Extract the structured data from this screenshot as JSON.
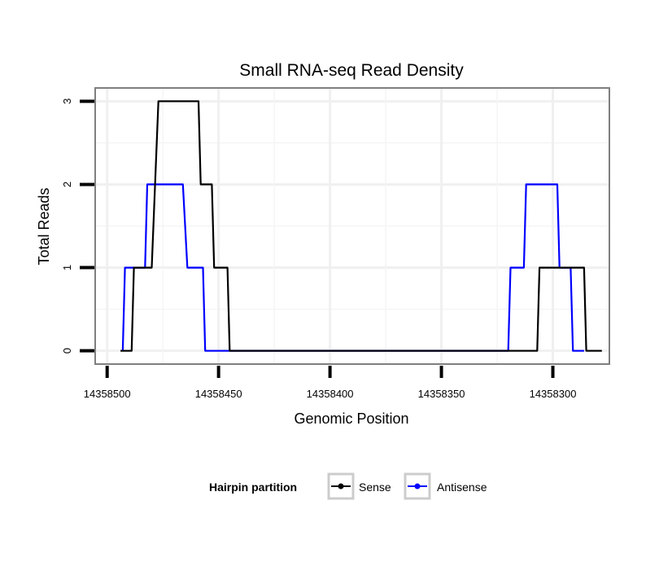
{
  "chart_data": {
    "type": "line",
    "title": "Small RNA-seq Read Density",
    "xlabel": "Genomic Position",
    "ylabel": "Total Reads",
    "xlim": [
      14358505,
      14358275
    ],
    "x_reversed": true,
    "ylim": [
      -0.15,
      3.15
    ],
    "x_ticks": [
      14358500,
      14358450,
      14358400,
      14358350,
      14358300
    ],
    "x_tick_labels": [
      "14358500",
      "14358450",
      "14358400",
      "14358350",
      "14358300"
    ],
    "y_ticks": [
      0,
      1,
      2,
      3
    ],
    "y_tick_labels": [
      "0",
      "1",
      "2",
      "3"
    ],
    "grid": true,
    "legend": {
      "title": "Hairpin partition",
      "placement": "bottom"
    },
    "series": [
      {
        "name": "Antisense",
        "color": "#0000ff",
        "points": [
          [
            14358493,
            0
          ],
          [
            14358492,
            1
          ],
          [
            14358483,
            1
          ],
          [
            14358482,
            2
          ],
          [
            14358466,
            2
          ],
          [
            14358464,
            1
          ],
          [
            14358457,
            1
          ],
          [
            14358456,
            0
          ],
          [
            14358320,
            0
          ],
          [
            14358319,
            1
          ],
          [
            14358313,
            1
          ],
          [
            14358312,
            2
          ],
          [
            14358298,
            2
          ],
          [
            14358297,
            1
          ],
          [
            14358292,
            1
          ],
          [
            14358291,
            0
          ],
          [
            14358286,
            0
          ]
        ]
      },
      {
        "name": "Sense",
        "color": "#000000",
        "points": [
          [
            14358494,
            0
          ],
          [
            14358489,
            0
          ],
          [
            14358488,
            1
          ],
          [
            14358480,
            1
          ],
          [
            14358477,
            3
          ],
          [
            14358459,
            3
          ],
          [
            14358458,
            2
          ],
          [
            14358453,
            2
          ],
          [
            14358452,
            1
          ],
          [
            14358446,
            1
          ],
          [
            14358445,
            0
          ],
          [
            14358307,
            0
          ],
          [
            14358306,
            1
          ],
          [
            14358286,
            1
          ],
          [
            14358285,
            0
          ],
          [
            14358278,
            0
          ]
        ]
      }
    ]
  }
}
